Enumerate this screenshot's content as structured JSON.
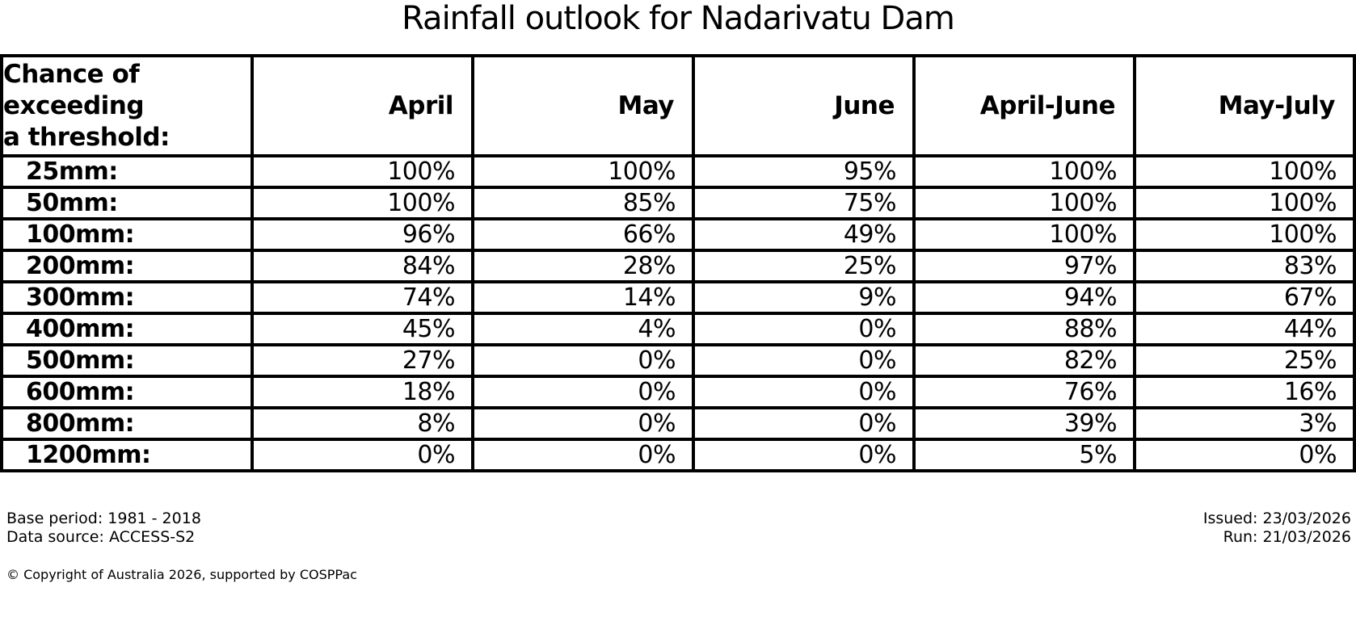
{
  "title": "Rainfall outlook for Nadarivatu Dam",
  "table": {
    "corner_header": "Chance of\nexceeding\na threshold:",
    "columns": [
      "April",
      "May",
      "June",
      "April-June",
      "May-July"
    ],
    "rows": [
      {
        "label": "25mm:",
        "values": [
          "100%",
          "100%",
          "95%",
          "100%",
          "100%"
        ]
      },
      {
        "label": "50mm:",
        "values": [
          "100%",
          "85%",
          "75%",
          "100%",
          "100%"
        ]
      },
      {
        "label": "100mm:",
        "values": [
          "96%",
          "66%",
          "49%",
          "100%",
          "100%"
        ]
      },
      {
        "label": "200mm:",
        "values": [
          "84%",
          "28%",
          "25%",
          "97%",
          "83%"
        ]
      },
      {
        "label": "300mm:",
        "values": [
          "74%",
          "14%",
          "9%",
          "94%",
          "67%"
        ]
      },
      {
        "label": "400mm:",
        "values": [
          "45%",
          "4%",
          "0%",
          "88%",
          "44%"
        ]
      },
      {
        "label": "500mm:",
        "values": [
          "27%",
          "0%",
          "0%",
          "82%",
          "25%"
        ]
      },
      {
        "label": "600mm:",
        "values": [
          "18%",
          "0%",
          "0%",
          "76%",
          "16%"
        ]
      },
      {
        "label": "800mm:",
        "values": [
          "8%",
          "0%",
          "0%",
          "39%",
          "3%"
        ]
      },
      {
        "label": "1200mm:",
        "values": [
          "0%",
          "0%",
          "0%",
          "5%",
          "0%"
        ]
      }
    ]
  },
  "footer": {
    "base_period": "Base period: 1981 - 2018",
    "data_source": "Data source: ACCESS-S2",
    "issued": "Issued: 23/03/2026",
    "run": "Run: 21/03/2026",
    "copyright": "© Copyright of Australia 2026, supported by COSPPac"
  },
  "colors": {
    "text": "#000000",
    "background": "#ffffff",
    "border": "#000000"
  },
  "chart_data": {
    "type": "table",
    "title": "Rainfall outlook for Nadarivatu Dam",
    "row_header": "Chance of exceeding a threshold:",
    "categories_mm": [
      25,
      50,
      100,
      200,
      300,
      400,
      500,
      600,
      800,
      1200
    ],
    "series": [
      {
        "name": "April",
        "values": [
          100,
          100,
          96,
          84,
          74,
          45,
          27,
          18,
          8,
          0
        ]
      },
      {
        "name": "May",
        "values": [
          100,
          85,
          66,
          28,
          14,
          4,
          0,
          0,
          0,
          0
        ]
      },
      {
        "name": "June",
        "values": [
          95,
          75,
          49,
          25,
          9,
          0,
          0,
          0,
          0,
          0
        ]
      },
      {
        "name": "April-June",
        "values": [
          100,
          100,
          100,
          97,
          94,
          88,
          82,
          76,
          39,
          5
        ]
      },
      {
        "name": "May-July",
        "values": [
          100,
          100,
          100,
          83,
          67,
          44,
          25,
          16,
          3,
          0
        ]
      }
    ],
    "units": "percent chance of exceeding threshold",
    "base_period": "1981 - 2018",
    "data_source": "ACCESS-S2",
    "issued": "23/03/2026",
    "run": "21/03/2026"
  }
}
